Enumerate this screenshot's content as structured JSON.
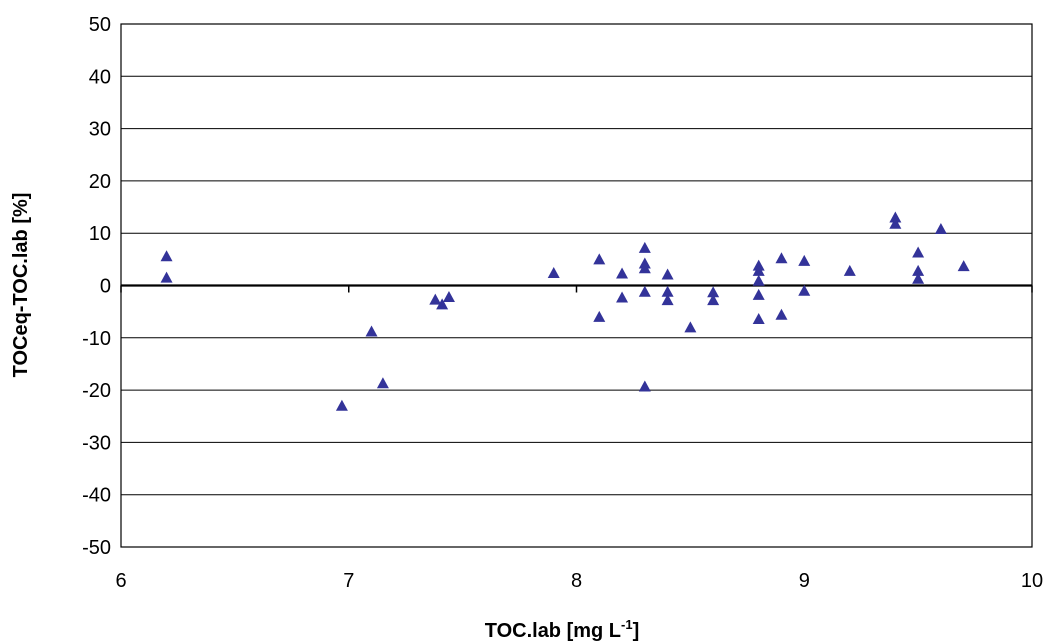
{
  "chart_data": {
    "type": "scatter",
    "xlabel": "TOC.lab [mg L",
    "xlabel_sup": "-1",
    "xlabel_end": "]",
    "ylabel": "TOCeq-TOC.lab [%]",
    "xlim": [
      6,
      10
    ],
    "ylim": [
      -50,
      50
    ],
    "xticks": [
      "6",
      "7",
      "8",
      "9",
      "10"
    ],
    "yticks": [
      "-50",
      "-40",
      "-30",
      "-20",
      "-10",
      "0",
      "10",
      "20",
      "30",
      "40",
      "50"
    ],
    "grid": "horizontal",
    "marker": "triangle",
    "marker_color": "#333399",
    "series": [
      {
        "points": [
          [
            6.2,
            5.6
          ],
          [
            6.2,
            1.5
          ],
          [
            6.97,
            -23
          ],
          [
            7.1,
            -8.8
          ],
          [
            7.15,
            -18.7
          ],
          [
            7.38,
            -2.7
          ],
          [
            7.41,
            -3.6
          ],
          [
            7.44,
            -2.2
          ],
          [
            7.9,
            2.4
          ],
          [
            8.1,
            5.0
          ],
          [
            8.1,
            -6.0
          ],
          [
            8.2,
            2.3
          ],
          [
            8.2,
            -2.3
          ],
          [
            8.3,
            7.2
          ],
          [
            8.3,
            4.2
          ],
          [
            8.3,
            3.3
          ],
          [
            8.3,
            -1.2
          ],
          [
            8.3,
            -19.3
          ],
          [
            8.4,
            2.1
          ],
          [
            8.4,
            -1.2
          ],
          [
            8.4,
            -2.8
          ],
          [
            8.5,
            -8.0
          ],
          [
            8.6,
            -1.3
          ],
          [
            8.6,
            -2.8
          ],
          [
            8.8,
            3.8
          ],
          [
            8.8,
            2.8
          ],
          [
            8.8,
            0.9
          ],
          [
            8.8,
            -1.8
          ],
          [
            8.8,
            -6.4
          ],
          [
            8.9,
            5.2
          ],
          [
            8.9,
            -5.6
          ],
          [
            9.0,
            4.7
          ],
          [
            9.0,
            -1.0
          ],
          [
            9.2,
            2.8
          ],
          [
            9.4,
            13.0
          ],
          [
            9.4,
            11.8
          ],
          [
            9.5,
            6.3
          ],
          [
            9.5,
            2.8
          ],
          [
            9.5,
            1.3
          ],
          [
            9.6,
            10.8
          ],
          [
            9.7,
            3.7
          ]
        ]
      }
    ]
  }
}
